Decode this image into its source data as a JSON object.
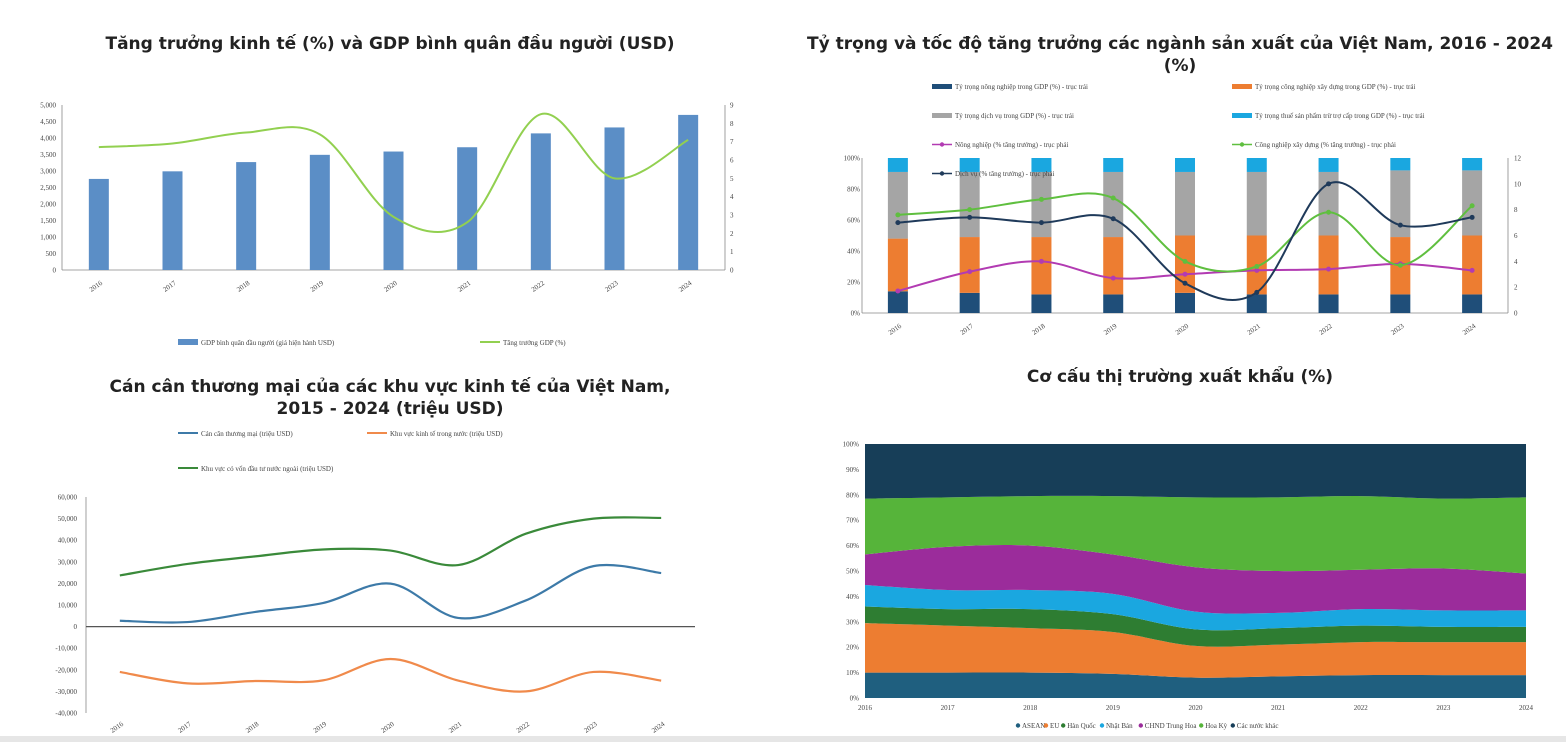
{
  "charts": [
    {
      "id": "gdp",
      "title": "Tăng trưởng kinh tế (%) và GDP bình quân đầu người (USD)",
      "type": "bar",
      "categories": [
        "2016",
        "2017",
        "2018",
        "2019",
        "2020",
        "2021",
        "2022",
        "2023",
        "2024"
      ],
      "y_left_ticks": [
        "0",
        "500",
        "1,000",
        "1,500",
        "2,000",
        "2,500",
        "3,000",
        "3,500",
        "4,000",
        "4,500",
        "5,000"
      ],
      "y_right_ticks": [
        "0",
        "1",
        "2",
        "3",
        "4",
        "5",
        "6",
        "7",
        "8",
        "9"
      ],
      "ylim_left": [
        0,
        5000
      ],
      "ylim_right": [
        0,
        9
      ],
      "series": [
        {
          "name": "GDP bình quân đầu người (giá hiện hành USD)",
          "type": "bar",
          "axis": "left",
          "color": "#5b8ec6",
          "values": [
            2760,
            2990,
            3270,
            3490,
            3590,
            3720,
            4140,
            4320,
            4700
          ]
        },
        {
          "name": "Tăng trưởng GDP (%)",
          "type": "line",
          "axis": "right",
          "color": "#92d050",
          "values": [
            6.7,
            6.9,
            7.5,
            7.4,
            2.9,
            2.6,
            8.5,
            5.0,
            7.1
          ]
        }
      ]
    },
    {
      "id": "sectors",
      "title": "Tỷ trọng và tốc độ tăng trưởng các ngành sản xuất của Việt Nam, 2016 - 2024 (%)",
      "type": "bar",
      "categories": [
        "2016",
        "2017",
        "2018",
        "2019",
        "2020",
        "2021",
        "2022",
        "2023",
        "2024"
      ],
      "y_left_ticks": [
        "0%",
        "20%",
        "40%",
        "60%",
        "80%",
        "100%"
      ],
      "y_right_ticks": [
        "0",
        "2",
        "4",
        "6",
        "8",
        "10",
        "12"
      ],
      "ylim_left": [
        0,
        100
      ],
      "ylim_right": [
        0,
        12
      ],
      "stacked": [
        {
          "name": "Tỷ trọng nông nghiệp trong GDP (%) - trục trái",
          "color": "#1f4e79",
          "values": [
            14,
            13,
            12,
            12,
            13,
            12,
            12,
            12,
            12
          ]
        },
        {
          "name": "Tỷ trọng công nghiệp xây dựng trong GDP (%) - trục trái",
          "color": "#ed7d31",
          "values": [
            34,
            36,
            37,
            37,
            37,
            38,
            38,
            37,
            38
          ]
        },
        {
          "name": "Tỷ trọng dịch vụ trong GDP (%) - trục trái",
          "color": "#a5a5a5",
          "values": [
            43,
            42,
            42,
            42,
            41,
            41,
            41,
            43,
            42
          ]
        },
        {
          "name": "Tỷ trọng thuế sản phẩm trừ trợ cấp trong GDP (%) - trục trái",
          "color": "#1aa7e0",
          "values": [
            9,
            9,
            9,
            9,
            9,
            9,
            9,
            8,
            8
          ]
        }
      ],
      "lines": [
        {
          "name": "Nông nghiệp (% tăng trưởng) - trục phải",
          "color": "#b23bb2",
          "values": [
            1.7,
            3.2,
            4.0,
            2.7,
            3.0,
            3.3,
            3.4,
            3.8,
            3.3
          ]
        },
        {
          "name": "Công nghiệp xây dựng (% tăng trưởng) - trục phải",
          "color": "#5fbf3f",
          "values": [
            7.6,
            8.0,
            8.8,
            8.9,
            4.0,
            3.6,
            7.8,
            3.7,
            8.3
          ]
        },
        {
          "name": "Dịch vụ (% tăng trưởng) - trục phải",
          "color": "#1f3a5a",
          "values": [
            7.0,
            7.4,
            7.0,
            7.3,
            2.3,
            1.6,
            10.0,
            6.8,
            7.4
          ]
        }
      ]
    },
    {
      "id": "trade",
      "title": "Cán cân thương mại của các khu vực kinh tế của Việt Nam, 2015 - 2024 (triệu USD)",
      "type": "line",
      "categories": [
        "2016",
        "2017",
        "2018",
        "2019",
        "2020",
        "2021",
        "2022",
        "2023",
        "2024"
      ],
      "y_ticks": [
        "-40,000",
        "-30,000",
        "-20,000",
        "-10,000",
        "0",
        "10,000",
        "20,000",
        "30,000",
        "40,000",
        "50,000",
        "60,000"
      ],
      "ylim": [
        -40000,
        60000
      ],
      "series": [
        {
          "name": "Cán cân thương mại (triệu USD)",
          "color": "#3d7aa8",
          "values": [
            2700,
            2100,
            6800,
            10900,
            19900,
            4000,
            12100,
            28000,
            24800
          ]
        },
        {
          "name": "Khu vực kinh tế trong nước (triệu USD)",
          "color": "#f08a4b",
          "values": [
            -21000,
            -26300,
            -25200,
            -24900,
            -15000,
            -25000,
            -30000,
            -21000,
            -25000
          ]
        },
        {
          "name": "Khu vực có vốn đầu tư nước ngoài (triệu USD)",
          "color": "#3a8a3a",
          "values": [
            23700,
            29000,
            32500,
            35700,
            35200,
            28500,
            43000,
            50000,
            50300
          ]
        }
      ]
    },
    {
      "id": "export",
      "title": "Cơ cấu thị trường xuất khẩu (%)",
      "type": "area",
      "categories": [
        "2016",
        "2017",
        "2018",
        "2019",
        "2020",
        "2021",
        "2022",
        "2023",
        "2024"
      ],
      "y_ticks": [
        "0%",
        "10%",
        "20%",
        "30%",
        "40%",
        "50%",
        "60%",
        "70%",
        "80%",
        "90%",
        "100%"
      ],
      "ylim": [
        0,
        100
      ],
      "series": [
        {
          "name": "ASEAN",
          "color": "#1f5f7f",
          "values": [
            10,
            10,
            10,
            9.5,
            8,
            8.5,
            9,
            9,
            9
          ]
        },
        {
          "name": "EU",
          "color": "#ed7d31",
          "values": [
            19.5,
            18.5,
            17.5,
            16.5,
            12.5,
            12.5,
            13,
            13,
            13
          ]
        },
        {
          "name": "Hàn Quốc",
          "color": "#2e7d32",
          "values": [
            6.5,
            6.5,
            7.5,
            7,
            6.5,
            6.5,
            6.5,
            6,
            6
          ]
        },
        {
          "name": "Nhật Bản",
          "color": "#1aa7e0",
          "values": [
            8.5,
            7.5,
            7.5,
            8,
            7,
            6,
            6.5,
            6.5,
            6.5
          ]
        },
        {
          "name": "CHND Trung Hoa",
          "color": "#9b2c9b",
          "values": [
            12,
            17,
            17.5,
            15.5,
            17.5,
            16.5,
            15.5,
            16.5,
            14.5
          ]
        },
        {
          "name": "Hoa Kỳ",
          "color": "#56b43a",
          "values": [
            22,
            19.5,
            19.5,
            23,
            27.5,
            29,
            29,
            27.5,
            30
          ]
        },
        {
          "name": "Các nước khác",
          "color": "#173e58",
          "values": [
            21.5,
            21,
            20.5,
            20.5,
            21,
            21,
            20.5,
            21.5,
            21
          ]
        }
      ]
    }
  ]
}
